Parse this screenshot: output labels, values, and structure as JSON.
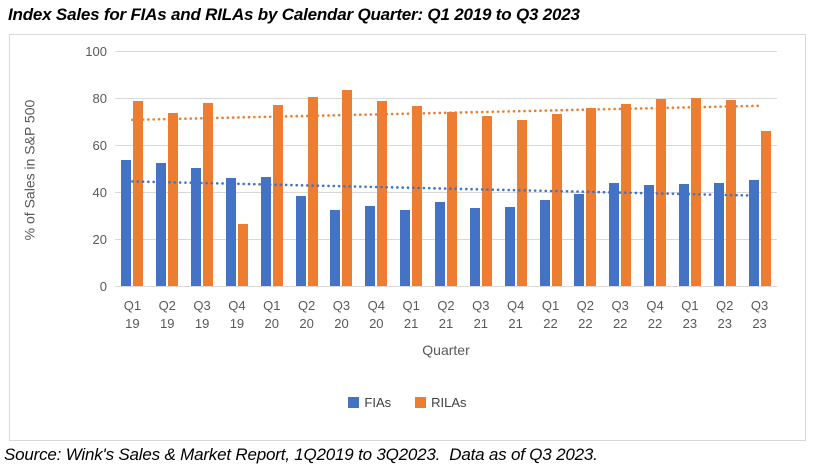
{
  "title": "Index Sales for FIAs and RILAs by Calendar Quarter: Q1 2019 to Q3 2023",
  "footer": "Source: Wink's Sales & Market Report, 1Q2019 to 3Q2023.  Data as of Q3 2023.",
  "colors": {
    "fia_blue": "#4472C4",
    "rila_orange": "#ED7D31",
    "gridline": "#d9d9d9",
    "axis_text": "#595959",
    "legend_text": "#404040"
  },
  "chart_data": {
    "type": "bar",
    "title": "Index Sales for FIAs and RILAs by Calendar Quarter: Q1 2019 to Q3 2023",
    "xlabel": "Quarter",
    "ylabel": "% of Sales in S&P 500",
    "ylim": [
      0,
      100
    ],
    "yticks": [
      0,
      20,
      40,
      60,
      80,
      100
    ],
    "grid": true,
    "legend_position": "bottom",
    "categories": [
      "Q1 19",
      "Q2 19",
      "Q3 19",
      "Q4 19",
      "Q1 20",
      "Q2 20",
      "Q3 20",
      "Q4 20",
      "Q1 21",
      "Q2 21",
      "Q3 21",
      "Q4 21",
      "Q1 22",
      "Q2 22",
      "Q3 22",
      "Q4 22",
      "Q1 23",
      "Q2 23",
      "Q3 23"
    ],
    "series": [
      {
        "name": "FIAs",
        "color": "#4472C4",
        "values": [
          53.5,
          52.5,
          50.3,
          46.0,
          46.5,
          38.2,
          32.5,
          34.0,
          32.4,
          35.6,
          33.0,
          33.5,
          36.5,
          39.0,
          44.0,
          43.0,
          43.4,
          44.0,
          45.3
        ]
      },
      {
        "name": "RILAs",
        "color": "#ED7D31",
        "values": [
          78.7,
          73.5,
          77.8,
          26.3,
          77.0,
          80.6,
          83.3,
          78.8,
          76.4,
          74.0,
          72.5,
          70.5,
          73.2,
          75.8,
          77.3,
          79.5,
          80.1,
          79.0,
          65.8
        ]
      }
    ],
    "trendlines": [
      {
        "series": "FIAs",
        "color": "#4472C4",
        "style": "dotted",
        "start": 44.5,
        "end": 38.4
      },
      {
        "series": "RILAs",
        "color": "#ED7D31",
        "style": "dotted",
        "start": 70.7,
        "end": 76.7
      }
    ]
  }
}
